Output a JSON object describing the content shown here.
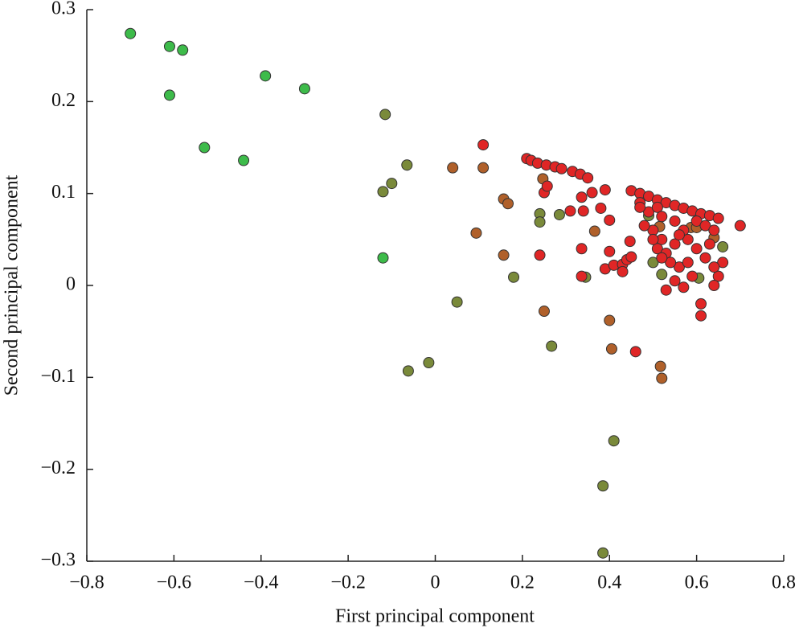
{
  "chart_data": {
    "type": "scatter",
    "x_label": "First principal component",
    "y_label": "Second principal component",
    "xlim": [
      -0.8,
      0.8
    ],
    "ylim": [
      -0.3,
      0.3
    ],
    "xticks": [
      {
        "value": -0.8,
        "label": "−0.8"
      },
      {
        "value": -0.6,
        "label": "−0.6"
      },
      {
        "value": -0.4,
        "label": "−0.4"
      },
      {
        "value": -0.2,
        "label": "−0.2"
      },
      0,
      0.2,
      0.4,
      0.6,
      0.8
    ],
    "yticks": [
      {
        "value": -0.3,
        "label": "−0.3"
      },
      {
        "value": -0.2,
        "label": "−0.2"
      },
      {
        "value": -0.1,
        "label": "−0.1"
      },
      0,
      0.1,
      0.2,
      0.3
    ],
    "grid": false,
    "series": [
      {
        "color": "#3dbb4a",
        "x": [
          -0.7,
          -0.61,
          -0.58,
          -0.61,
          -0.39,
          -0.3,
          -0.53,
          -0.44,
          -0.12
        ],
        "y": [
          0.274,
          0.26,
          0.256,
          0.207,
          0.228,
          0.214,
          0.15,
          0.136,
          0.03
        ]
      },
      {
        "color": "#7a8a3a",
        "x": [
          -0.115,
          -0.065,
          -0.1,
          -0.12,
          0.05,
          -0.015,
          -0.062,
          0.18,
          0.24,
          0.285,
          0.267,
          0.41,
          0.385,
          0.385,
          0.5,
          0.52,
          0.605,
          0.66,
          0.24,
          0.49,
          0.345
        ],
        "y": [
          0.186,
          0.131,
          0.111,
          0.102,
          -0.018,
          -0.084,
          -0.093,
          0.009,
          0.078,
          0.077,
          -0.066,
          -0.169,
          -0.218,
          -0.291,
          0.025,
          0.012,
          0.008,
          0.042,
          0.069,
          0.076,
          0.009
        ]
      },
      {
        "color": "#b0602a",
        "x": [
          0.04,
          0.11,
          0.094,
          0.157,
          0.167,
          0.157,
          0.25,
          0.247,
          0.366,
          0.4,
          0.405,
          0.517,
          0.52,
          0.515,
          0.64,
          0.587,
          0.6
        ],
        "y": [
          0.128,
          0.128,
          0.057,
          0.094,
          0.089,
          0.033,
          -0.028,
          0.116,
          0.059,
          -0.038,
          -0.069,
          -0.088,
          -0.101,
          0.064,
          0.052,
          0.063,
          0.063
        ]
      },
      {
        "color": "#e02626",
        "x": [
          0.11,
          0.21,
          0.22,
          0.235,
          0.255,
          0.275,
          0.29,
          0.315,
          0.333,
          0.35,
          0.25,
          0.257,
          0.31,
          0.34,
          0.336,
          0.36,
          0.39,
          0.38,
          0.4,
          0.24,
          0.336,
          0.336,
          0.4,
          0.39,
          0.41,
          0.43,
          0.44,
          0.43,
          0.45,
          0.447,
          0.45,
          0.47,
          0.49,
          0.51,
          0.53,
          0.55,
          0.57,
          0.59,
          0.61,
          0.63,
          0.65,
          0.7,
          0.47,
          0.49,
          0.51,
          0.52,
          0.5,
          0.52,
          0.55,
          0.57,
          0.6,
          0.62,
          0.64,
          0.48,
          0.51,
          0.53,
          0.55,
          0.58,
          0.6,
          0.63,
          0.66,
          0.65,
          0.64,
          0.62,
          0.56,
          0.54,
          0.52,
          0.53,
          0.55,
          0.57,
          0.59,
          0.61,
          0.61,
          0.46,
          0.47,
          0.58,
          0.64,
          0.5,
          0.56
        ],
        "y": [
          0.153,
          0.138,
          0.136,
          0.133,
          0.131,
          0.129,
          0.127,
          0.124,
          0.121,
          0.117,
          0.101,
          0.108,
          0.081,
          0.081,
          0.096,
          0.101,
          0.104,
          0.084,
          0.071,
          0.033,
          0.04,
          0.01,
          0.037,
          0.018,
          0.022,
          0.023,
          0.028,
          0.015,
          0.031,
          0.048,
          0.103,
          0.1,
          0.097,
          0.093,
          0.09,
          0.087,
          0.084,
          0.081,
          0.078,
          0.076,
          0.073,
          0.065,
          0.09,
          0.08,
          0.085,
          0.075,
          0.06,
          0.05,
          0.07,
          0.06,
          0.07,
          0.065,
          0.06,
          0.065,
          0.04,
          0.035,
          0.045,
          0.05,
          0.04,
          0.045,
          0.025,
          0.01,
          0.0,
          0.03,
          0.02,
          0.025,
          0.03,
          -0.005,
          0.005,
          -0.002,
          0.01,
          -0.02,
          -0.033,
          -0.072,
          0.085,
          0.025,
          0.02,
          0.05,
          0.055
        ]
      }
    ]
  }
}
